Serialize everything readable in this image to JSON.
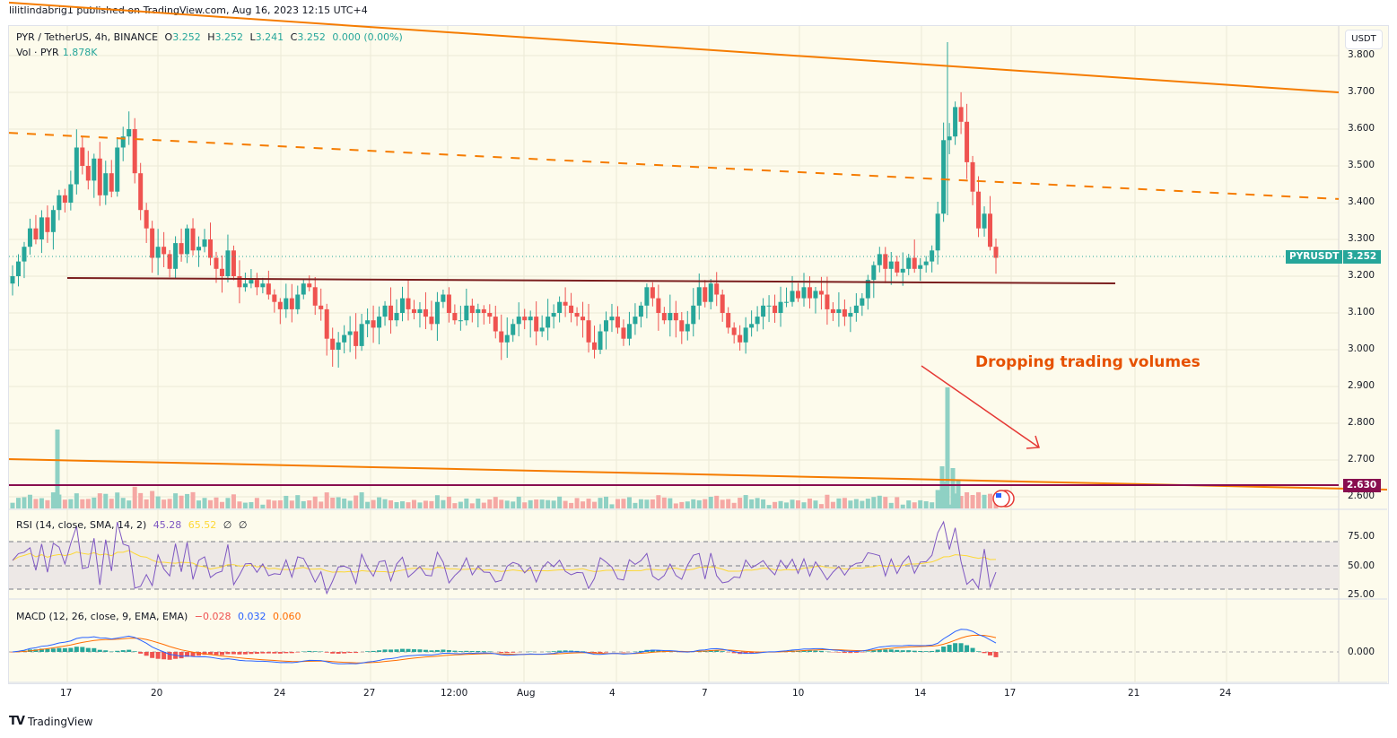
{
  "header": {
    "published_by": "lilitlindabrig1 published on TradingView.com, Aug 16, 2023 12:15 UTC+4"
  },
  "legend": {
    "symbol": "PYR / TetherUS, 4h, BINANCE",
    "open_label": "O",
    "open": "3.252",
    "high_label": "H",
    "high": "3.252",
    "low_label": "L",
    "low": "3.241",
    "close_label": "C",
    "close": "3.252",
    "change": "0.000 (0.00%)",
    "vol_label": "Vol · PYR",
    "vol": "1.878K"
  },
  "currency_button": "USDT",
  "price_axis": [
    "3.800",
    "3.700",
    "3.600",
    "3.500",
    "3.400",
    "3.300",
    "3.200",
    "3.100",
    "3.000",
    "2.900",
    "2.800",
    "2.700",
    "2.600"
  ],
  "price_tag": {
    "symbol": "PYRUSDT",
    "value": "3.252",
    "color": "#26a69a"
  },
  "level_tag": {
    "value": "2.630",
    "color": "#880e4f"
  },
  "annotation": {
    "text": "Dropping trading volumes",
    "color": "#e65100"
  },
  "rsi": {
    "label": "RSI (14, close, SMA, 14, 2)",
    "value": "45.28",
    "sma": "65.52",
    "n1": "∅",
    "n2": "∅",
    "axis": [
      "75.00",
      "50.00",
      "25.00"
    ]
  },
  "macd": {
    "label": "MACD (12, 26, close, 9, EMA, EMA)",
    "hist": "−0.028",
    "macd": "0.032",
    "signal": "0.060",
    "axis": [
      "0.000"
    ]
  },
  "time_axis": [
    "17",
    "20",
    "24",
    "27",
    "12:00",
    "Aug",
    "4",
    "7",
    "10",
    "14",
    "17",
    "21",
    "24"
  ],
  "footer": {
    "brand": "TradingView"
  },
  "colors": {
    "up": "#26a69a",
    "down": "#ef5350",
    "bg": "#fdfbec",
    "trend": "#f57c00",
    "support": "#7b1f1f",
    "level": "#880e4f",
    "rsi": "#7e57c2",
    "rsi_sma": "#fdd835",
    "macd": "#2962ff",
    "signal": "#ff6d00"
  },
  "chart_data": {
    "type": "candlestick",
    "title": "PYR / TetherUS, 4h, BINANCE",
    "ylabel": "USDT",
    "ylim": [
      2.58,
      3.83
    ],
    "x_ticks": [
      "17",
      "20",
      "24",
      "27",
      "12:00",
      "Aug",
      "4",
      "7",
      "10",
      "14",
      "17",
      "21",
      "24"
    ],
    "closes": [
      3.2,
      3.24,
      3.28,
      3.33,
      3.3,
      3.36,
      3.32,
      3.38,
      3.42,
      3.4,
      3.45,
      3.55,
      3.5,
      3.46,
      3.52,
      3.42,
      3.48,
      3.43,
      3.55,
      3.58,
      3.6,
      3.48,
      3.38,
      3.33,
      3.25,
      3.28,
      3.26,
      3.22,
      3.29,
      3.26,
      3.33,
      3.27,
      3.28,
      3.3,
      3.25,
      3.22,
      3.2,
      3.27,
      3.2,
      3.17,
      3.18,
      3.19,
      3.17,
      3.18,
      3.15,
      3.13,
      3.11,
      3.14,
      3.11,
      3.15,
      3.18,
      3.17,
      3.12,
      3.11,
      3.03,
      3.0,
      3.02,
      3.04,
      3.05,
      3.01,
      3.07,
      3.08,
      3.06,
      3.09,
      3.12,
      3.08,
      3.1,
      3.14,
      3.11,
      3.1,
      3.11,
      3.09,
      3.07,
      3.13,
      3.15,
      3.1,
      3.08,
      3.08,
      3.12,
      3.1,
      3.11,
      3.1,
      3.09,
      3.05,
      3.02,
      3.04,
      3.07,
      3.09,
      3.08,
      3.09,
      3.05,
      3.06,
      3.09,
      3.1,
      3.13,
      3.12,
      3.1,
      3.09,
      3.08,
      3.02,
      3.0,
      3.05,
      3.08,
      3.09,
      3.06,
      3.03,
      3.07,
      3.09,
      3.12,
      3.17,
      3.14,
      3.1,
      3.08,
      3.1,
      3.08,
      3.05,
      3.07,
      3.12,
      3.17,
      3.13,
      3.18,
      3.15,
      3.1,
      3.06,
      3.04,
      3.02,
      3.06,
      3.07,
      3.09,
      3.12,
      3.12,
      3.1,
      3.13,
      3.13,
      3.16,
      3.14,
      3.17,
      3.14,
      3.16,
      3.15,
      3.11,
      3.1,
      3.11,
      3.09,
      3.1,
      3.12,
      3.14,
      3.19,
      3.23,
      3.26,
      3.22,
      3.24,
      3.21,
      3.22,
      3.25,
      3.22,
      3.23,
      3.24,
      3.27,
      3.37,
      3.57,
      3.58,
      3.66,
      3.62,
      3.51,
      3.43,
      3.33,
      3.37,
      3.28,
      3.25
    ],
    "trendlines": [
      {
        "name": "upper-resistance",
        "style": "solid",
        "from": [
          0,
          3.91
        ],
        "to": [
          1.0,
          3.7
        ]
      },
      {
        "name": "upper-dashed",
        "style": "dashed",
        "from": [
          0,
          3.59
        ],
        "to": [
          1.0,
          3.41
        ]
      },
      {
        "name": "support",
        "style": "solid",
        "value": 3.2
      },
      {
        "name": "lower-channel",
        "style": "solid",
        "from": [
          0,
          2.7
        ],
        "to": [
          1.0,
          2.62
        ]
      },
      {
        "name": "horizontal-level",
        "style": "solid",
        "value": 2.63
      }
    ],
    "rsi": {
      "last": 45.28,
      "sma": 65.52,
      "ylim": [
        20,
        90
      ],
      "bands": [
        30,
        50,
        70
      ]
    },
    "macd": {
      "hist": -0.028,
      "macd": 0.032,
      "signal": 0.06
    }
  }
}
